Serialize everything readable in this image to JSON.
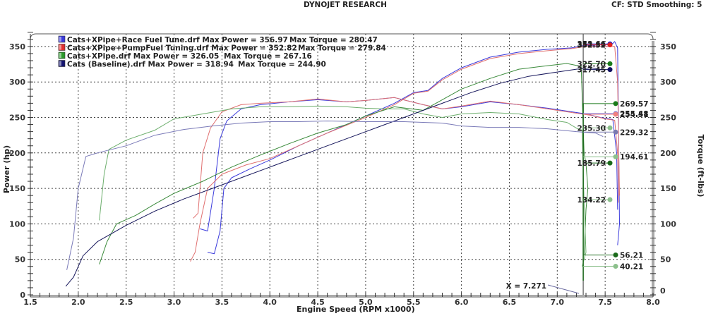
{
  "header": {
    "title": "DYNOJET RESEARCH",
    "settings": "CF: STD  Smoothing: 5"
  },
  "chart_data": {
    "type": "line",
    "title": "DYNOJET RESEARCH",
    "subtitle": "CF: STD  Smoothing: 5",
    "xlabel": "Engine Speed (RPM x1000)",
    "ylabel": "Power (hp)",
    "y2label": "Torque (ft-lbs)",
    "xlim": [
      1.5,
      8.0
    ],
    "ylim": [
      0,
      375
    ],
    "y2lim": [
      0,
      375
    ],
    "x_ticks": [
      "1.5",
      "2.0",
      "2.5",
      "3.0",
      "3.5",
      "4.0",
      "4.5",
      "5.0",
      "5.5",
      "6.0",
      "6.5",
      "7.0",
      "7.5",
      "8.0"
    ],
    "y_ticks": [
      "0",
      "50",
      "100",
      "150",
      "200",
      "250",
      "300",
      "350"
    ],
    "y2_ticks": [
      "0",
      "50",
      "100",
      "150",
      "200",
      "250",
      "300",
      "350"
    ],
    "grid": true,
    "legend_position": "top-left",
    "cursor": {
      "x": 7.271,
      "label": "X = 7.271"
    },
    "series": [
      {
        "name": "Cats+XPipe+Race Fuel Tune.drf",
        "legend": "Cats+XPipe+Race Fuel Tune.drf Max Power = 356.97    Max Torque = 280.47",
        "max_power": 356.97,
        "max_torque": 280.47,
        "color": "#3a3adc",
        "swatch": "#3a3adc",
        "cursor_power": 353.66,
        "cursor_torque": 255.48,
        "power": [
          [
            3.35,
            60
          ],
          [
            3.42,
            58
          ],
          [
            3.48,
            90
          ],
          [
            3.52,
            150
          ],
          [
            3.6,
            165
          ],
          [
            3.8,
            178
          ],
          [
            4.0,
            190
          ],
          [
            4.3,
            210
          ],
          [
            4.6,
            228
          ],
          [
            5.0,
            252
          ],
          [
            5.3,
            270
          ],
          [
            5.5,
            285
          ],
          [
            5.65,
            288
          ],
          [
            5.8,
            305
          ],
          [
            6.0,
            320
          ],
          [
            6.3,
            335
          ],
          [
            6.6,
            342
          ],
          [
            6.9,
            346
          ],
          [
            7.15,
            348
          ],
          [
            7.3,
            352
          ],
          [
            7.45,
            350
          ],
          [
            7.55,
            350
          ],
          [
            7.6,
            357
          ],
          [
            7.63,
            348
          ],
          [
            7.65,
            100
          ],
          [
            7.63,
            70
          ]
        ],
        "torque": [
          [
            3.27,
            93
          ],
          [
            3.35,
            90
          ],
          [
            3.42,
            150
          ],
          [
            3.48,
            220
          ],
          [
            3.55,
            245
          ],
          [
            3.7,
            262
          ],
          [
            3.9,
            268
          ],
          [
            4.2,
            272
          ],
          [
            4.5,
            275
          ],
          [
            4.8,
            272
          ],
          [
            5.0,
            274
          ],
          [
            5.3,
            278
          ],
          [
            5.6,
            268
          ],
          [
            5.8,
            262
          ],
          [
            6.0,
            265
          ],
          [
            6.3,
            272
          ],
          [
            6.6,
            268
          ],
          [
            6.9,
            263
          ],
          [
            7.15,
            258
          ],
          [
            7.3,
            255
          ],
          [
            7.45,
            250
          ],
          [
            7.58,
            247
          ],
          [
            7.62,
            200
          ],
          [
            7.63,
            120
          ]
        ]
      },
      {
        "name": "Cats+XPipe+PumpFuel Tuning.drf",
        "legend": "Cats+XPipe+PumpFuel Tuning.drf Max Power = 352.82    Max Torque = 279.84",
        "max_power": 352.82,
        "max_torque": 279.84,
        "color": "#e07070",
        "swatch": "#e03030",
        "cursor_power": 352.32,
        "cursor_torque": 254.51,
        "power": [
          [
            3.17,
            47
          ],
          [
            3.22,
            60
          ],
          [
            3.27,
            100
          ],
          [
            3.35,
            150
          ],
          [
            3.5,
            170
          ],
          [
            3.75,
            183
          ],
          [
            4.0,
            192
          ],
          [
            4.3,
            210
          ],
          [
            4.6,
            228
          ],
          [
            5.0,
            250
          ],
          [
            5.3,
            268
          ],
          [
            5.5,
            284
          ],
          [
            5.65,
            287
          ],
          [
            5.8,
            303
          ],
          [
            6.0,
            318
          ],
          [
            6.3,
            333
          ],
          [
            6.6,
            340
          ],
          [
            6.9,
            344
          ],
          [
            7.15,
            347
          ],
          [
            7.3,
            350
          ],
          [
            7.45,
            350
          ],
          [
            7.6,
            350
          ],
          [
            7.63,
            300
          ],
          [
            7.65,
            140
          ]
        ],
        "torque": [
          [
            3.2,
            108
          ],
          [
            3.25,
            115
          ],
          [
            3.3,
            200
          ],
          [
            3.38,
            235
          ],
          [
            3.5,
            258
          ],
          [
            3.7,
            268
          ],
          [
            3.9,
            270
          ],
          [
            4.2,
            272
          ],
          [
            4.5,
            276
          ],
          [
            4.8,
            272
          ],
          [
            5.0,
            274
          ],
          [
            5.3,
            278
          ],
          [
            5.6,
            268
          ],
          [
            5.8,
            262
          ],
          [
            6.0,
            266
          ],
          [
            6.3,
            273
          ],
          [
            6.6,
            268
          ],
          [
            6.9,
            262
          ],
          [
            7.15,
            257
          ],
          [
            7.35,
            253
          ],
          [
            7.5,
            248
          ],
          [
            7.6,
            246
          ],
          [
            7.63,
            200
          ],
          [
            7.64,
            130
          ]
        ]
      },
      {
        "name": "Cats+XPipe.drf",
        "legend": "Cats+XPipe.drf Max Power = 326.05    Max Torque = 267.16",
        "max_power": 326.05,
        "max_torque": 267.16,
        "color": "#3a8a3a",
        "swatch": "#2a9a2a",
        "cursor_power": 325.7,
        "cursor_torque": 269.57,
        "power": [
          [
            2.22,
            43
          ],
          [
            2.3,
            75
          ],
          [
            2.4,
            100
          ],
          [
            2.6,
            112
          ],
          [
            2.8,
            128
          ],
          [
            3.0,
            143
          ],
          [
            3.3,
            160
          ],
          [
            3.6,
            180
          ],
          [
            3.9,
            197
          ],
          [
            4.2,
            213
          ],
          [
            4.5,
            228
          ],
          [
            4.8,
            240
          ],
          [
            5.0,
            252
          ],
          [
            5.3,
            265
          ],
          [
            5.6,
            260
          ],
          [
            5.8,
            275
          ],
          [
            6.0,
            290
          ],
          [
            6.3,
            305
          ],
          [
            6.6,
            318
          ],
          [
            6.9,
            323
          ],
          [
            7.1,
            326
          ],
          [
            7.25,
            322
          ],
          [
            7.28,
            200
          ],
          [
            7.3,
            185
          ],
          [
            7.32,
            150
          ],
          [
            7.3,
            120
          ],
          [
            7.28,
            56
          ]
        ],
        "torque": [
          [
            2.22,
            105
          ],
          [
            2.27,
            170
          ],
          [
            2.32,
            205
          ],
          [
            2.5,
            218
          ],
          [
            2.8,
            232
          ],
          [
            3.0,
            248
          ],
          [
            3.3,
            255
          ],
          [
            3.6,
            262
          ],
          [
            3.9,
            265
          ],
          [
            4.2,
            265
          ],
          [
            4.5,
            266
          ],
          [
            4.8,
            265
          ],
          [
            5.0,
            263
          ],
          [
            5.2,
            262
          ],
          [
            5.4,
            262
          ],
          [
            5.6,
            255
          ],
          [
            5.8,
            250
          ],
          [
            6.0,
            255
          ],
          [
            6.3,
            257
          ],
          [
            6.6,
            255
          ],
          [
            6.9,
            247
          ],
          [
            7.1,
            243
          ],
          [
            7.2,
            235
          ],
          [
            7.26,
            232
          ],
          [
            7.28,
            130
          ],
          [
            7.3,
            60
          ],
          [
            7.26,
            40
          ]
        ]
      },
      {
        "name": "Cats (Baseline).drf",
        "legend": "Cats (Baseline).drf Max Power = 318.94    Max Torque = 244.90",
        "max_power": 318.94,
        "max_torque": 244.9,
        "color": "#14145a",
        "swatch": "#141470",
        "cursor_power": 317.45,
        "cursor_torque": 229.32,
        "power": [
          [
            1.87,
            12
          ],
          [
            1.95,
            25
          ],
          [
            2.05,
            55
          ],
          [
            2.2,
            75
          ],
          [
            2.5,
            98
          ],
          [
            2.8,
            118
          ],
          [
            3.1,
            135
          ],
          [
            3.4,
            150
          ],
          [
            3.7,
            165
          ],
          [
            4.0,
            180
          ],
          [
            4.3,
            195
          ],
          [
            4.6,
            210
          ],
          [
            4.9,
            225
          ],
          [
            5.2,
            240
          ],
          [
            5.5,
            255
          ],
          [
            5.8,
            270
          ],
          [
            6.1,
            285
          ],
          [
            6.4,
            298
          ],
          [
            6.7,
            308
          ],
          [
            7.0,
            314
          ],
          [
            7.2,
            318
          ],
          [
            7.35,
            320
          ],
          [
            7.48,
            317
          ]
        ],
        "torque": [
          [
            1.88,
            35
          ],
          [
            1.95,
            80
          ],
          [
            2.0,
            150
          ],
          [
            2.08,
            195
          ],
          [
            2.2,
            200
          ],
          [
            2.5,
            210
          ],
          [
            2.8,
            225
          ],
          [
            3.1,
            233
          ],
          [
            3.4,
            238
          ],
          [
            3.7,
            242
          ],
          [
            4.0,
            244
          ],
          [
            4.3,
            244
          ],
          [
            4.6,
            245
          ],
          [
            5.0,
            244
          ],
          [
            5.4,
            244
          ],
          [
            5.8,
            242
          ],
          [
            6.0,
            238
          ],
          [
            6.3,
            236
          ],
          [
            6.6,
            236
          ],
          [
            6.9,
            234
          ],
          [
            7.2,
            230
          ],
          [
            7.4,
            228
          ],
          [
            7.48,
            223
          ]
        ]
      }
    ],
    "cursor_markers": [
      {
        "label": "353.66",
        "value": 353.66,
        "side": "left",
        "color": "#1a1acc"
      },
      {
        "label": "352.32",
        "value": 352.32,
        "side": "left",
        "color": "#e02020"
      },
      {
        "label": "325.70",
        "value": 325.7,
        "side": "left",
        "color": "#1a7a1a"
      },
      {
        "label": "317.45",
        "value": 317.45,
        "side": "left",
        "color": "#101060"
      },
      {
        "label": "269.57",
        "value": 269.57,
        "side": "right",
        "color": "#1a7a1a"
      },
      {
        "label": "255.48",
        "value": 255.48,
        "side": "right",
        "color": "#7a7ae0"
      },
      {
        "label": "254.51",
        "value": 254.51,
        "side": "right",
        "color": "#f08080"
      },
      {
        "label": "235.30",
        "value": 235.3,
        "side": "left",
        "color": "#8cc08c"
      },
      {
        "label": "229.32",
        "value": 229.32,
        "side": "right",
        "color": "#7a7ab0"
      },
      {
        "label": "194.61",
        "value": 194.61,
        "side": "right",
        "color": "#8cc08c"
      },
      {
        "label": "185.79",
        "value": 185.79,
        "side": "left",
        "color": "#1a6a1a"
      },
      {
        "label": "134.22",
        "value": 134.22,
        "side": "left",
        "color": "#8cc08c"
      },
      {
        "label": "56.21",
        "value": 56.21,
        "side": "right",
        "color": "#1a6a1a"
      },
      {
        "label": "40.21",
        "value": 40.21,
        "side": "right",
        "color": "#8cc08c"
      }
    ]
  }
}
